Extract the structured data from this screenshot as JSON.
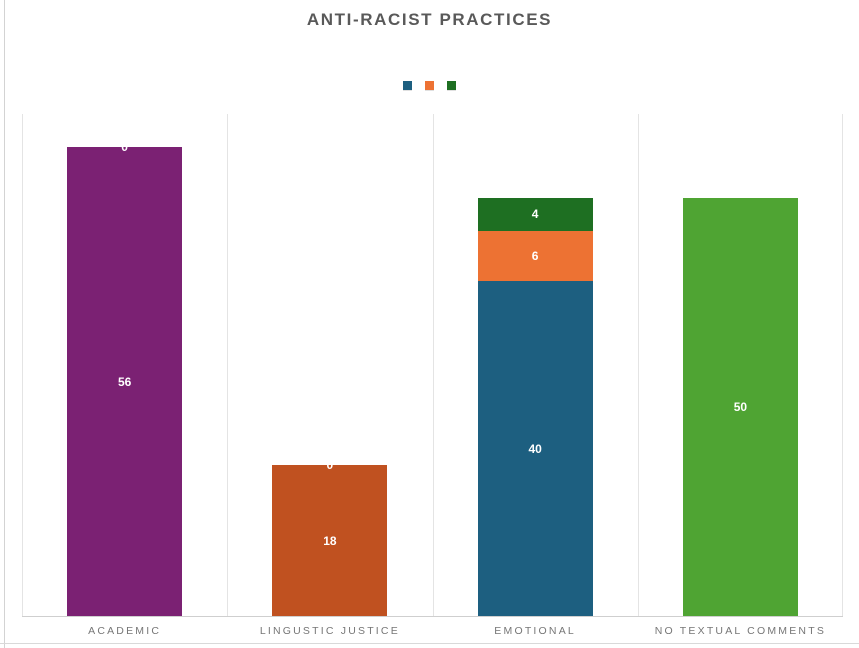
{
  "chart_data": {
    "type": "bar",
    "stacked": true,
    "title": "ANTI-RACIST PRACTICES",
    "categories": [
      "ACADEMIC",
      "LINGUSTIC JUSTICE",
      "EMOTIONAL",
      "NO TEXTUAL COMMENTS"
    ],
    "ylim": [
      0,
      60
    ],
    "grid": "vertical-category-separators-only",
    "legend": {
      "position": "top-center",
      "swatch_colors": [
        "#1d5f80",
        "#ed7233",
        "#1e6f22"
      ]
    },
    "bars": [
      {
        "category": "ACADEMIC",
        "segments": [
          {
            "value": 56,
            "label": "56",
            "color": "#7b2173"
          }
        ],
        "zero_label": "0"
      },
      {
        "category": "LINGUSTIC JUSTICE",
        "segments": [
          {
            "value": 18,
            "label": "18",
            "color": "#c05120"
          }
        ],
        "zero_label": "0"
      },
      {
        "category": "EMOTIONAL",
        "segments": [
          {
            "value": 40,
            "label": "40",
            "color": "#1d5f80"
          },
          {
            "value": 6,
            "label": "6",
            "color": "#ed7233"
          },
          {
            "value": 4,
            "label": "4",
            "color": "#1e6f22"
          }
        ]
      },
      {
        "category": "NO TEXTUAL COMMENTS",
        "segments": [
          {
            "value": 50,
            "label": "50",
            "color": "#4fa433"
          }
        ]
      }
    ]
  }
}
